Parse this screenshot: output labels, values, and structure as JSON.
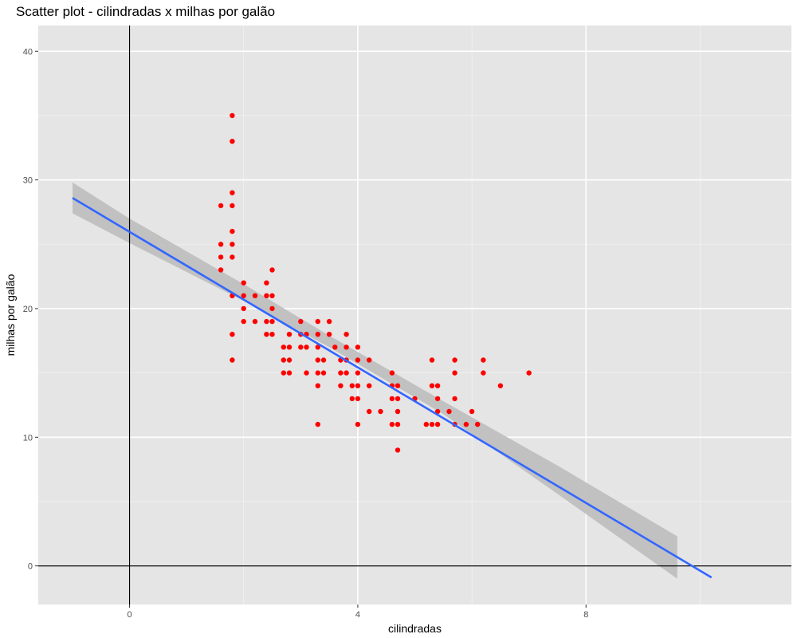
{
  "chart_data": {
    "type": "scatter",
    "title": "Scatter plot - cilindradas x milhas por galão",
    "xlabel": "cilindradas",
    "ylabel": "milhas por galão",
    "xlim": [
      -1.6,
      11.6
    ],
    "ylim": [
      -3,
      42
    ],
    "x_ticks": [
      0,
      4,
      8
    ],
    "y_ticks": [
      0,
      10,
      20,
      30,
      40
    ],
    "x_tick_labels": [
      "0",
      "4",
      "8"
    ],
    "y_tick_labels": [
      "0",
      "10",
      "20",
      "30",
      "40"
    ],
    "grid": true,
    "reference_lines": {
      "x": 0,
      "y": 0
    },
    "point_color": "#ff0000",
    "panel_background": "#e5e5e5",
    "points": [
      [
        1.8,
        35
      ],
      [
        1.8,
        33
      ],
      [
        1.8,
        29
      ],
      [
        1.6,
        28
      ],
      [
        1.8,
        28
      ],
      [
        1.8,
        26
      ],
      [
        1.6,
        25
      ],
      [
        1.8,
        25
      ],
      [
        1.6,
        24
      ],
      [
        1.8,
        24
      ],
      [
        1.6,
        23
      ],
      [
        2.5,
        23
      ],
      [
        2.0,
        22
      ],
      [
        2.4,
        22
      ],
      [
        1.8,
        21
      ],
      [
        2.0,
        21
      ],
      [
        2.4,
        21
      ],
      [
        2.5,
        21
      ],
      [
        2.2,
        21
      ],
      [
        2.0,
        20
      ],
      [
        2.5,
        20
      ],
      [
        2.0,
        19
      ],
      [
        2.2,
        19
      ],
      [
        2.4,
        19
      ],
      [
        2.5,
        19
      ],
      [
        3.0,
        19
      ],
      [
        3.3,
        19
      ],
      [
        3.5,
        19
      ],
      [
        1.8,
        18
      ],
      [
        2.4,
        18
      ],
      [
        2.5,
        18
      ],
      [
        2.8,
        18
      ],
      [
        3.0,
        18
      ],
      [
        3.1,
        18
      ],
      [
        3.3,
        18
      ],
      [
        3.5,
        18
      ],
      [
        3.8,
        18
      ],
      [
        2.7,
        17
      ],
      [
        2.8,
        17
      ],
      [
        3.0,
        17
      ],
      [
        3.1,
        17
      ],
      [
        3.3,
        17
      ],
      [
        3.6,
        17
      ],
      [
        3.8,
        17
      ],
      [
        4.0,
        17
      ],
      [
        1.8,
        16
      ],
      [
        2.7,
        16
      ],
      [
        2.8,
        16
      ],
      [
        3.3,
        16
      ],
      [
        3.4,
        16
      ],
      [
        3.7,
        16
      ],
      [
        3.8,
        16
      ],
      [
        4.0,
        16
      ],
      [
        4.2,
        16
      ],
      [
        5.3,
        16
      ],
      [
        5.7,
        16
      ],
      [
        6.2,
        16
      ],
      [
        2.7,
        15
      ],
      [
        2.8,
        15
      ],
      [
        3.1,
        15
      ],
      [
        3.3,
        15
      ],
      [
        3.4,
        15
      ],
      [
        3.7,
        15
      ],
      [
        3.8,
        15
      ],
      [
        4.0,
        15
      ],
      [
        4.6,
        15
      ],
      [
        5.7,
        15
      ],
      [
        6.2,
        15
      ],
      [
        7.0,
        15
      ],
      [
        3.3,
        14
      ],
      [
        3.7,
        14
      ],
      [
        3.9,
        14
      ],
      [
        4.0,
        14
      ],
      [
        4.2,
        14
      ],
      [
        4.6,
        14
      ],
      [
        4.7,
        14
      ],
      [
        5.3,
        14
      ],
      [
        5.4,
        14
      ],
      [
        6.5,
        14
      ],
      [
        3.9,
        13
      ],
      [
        4.0,
        13
      ],
      [
        4.6,
        13
      ],
      [
        4.7,
        13
      ],
      [
        5.0,
        13
      ],
      [
        5.4,
        13
      ],
      [
        5.7,
        13
      ],
      [
        4.2,
        12
      ],
      [
        4.4,
        12
      ],
      [
        4.7,
        12
      ],
      [
        5.4,
        12
      ],
      [
        5.6,
        12
      ],
      [
        6.0,
        12
      ],
      [
        3.3,
        11
      ],
      [
        4.0,
        11
      ],
      [
        4.6,
        11
      ],
      [
        4.7,
        11
      ],
      [
        5.2,
        11
      ],
      [
        5.3,
        11
      ],
      [
        5.4,
        11
      ],
      [
        5.7,
        11
      ],
      [
        5.9,
        11
      ],
      [
        6.1,
        11
      ],
      [
        4.7,
        9
      ]
    ],
    "fit_line": {
      "type": "linear",
      "x": [
        -1.0,
        10.2
      ],
      "y": [
        28.6,
        -0.9
      ],
      "color": "#3366ff"
    },
    "confidence_band": {
      "color": "#bfbfbf",
      "x": [
        -1.0,
        0.0,
        2.0,
        3.5,
        5.5,
        7.5,
        9.6
      ],
      "upper": [
        29.8,
        27.0,
        21.9,
        17.9,
        12.8,
        7.8,
        2.3
      ],
      "lower": [
        27.4,
        25.1,
        20.6,
        17.0,
        11.8,
        5.6,
        -1.0
      ]
    }
  }
}
